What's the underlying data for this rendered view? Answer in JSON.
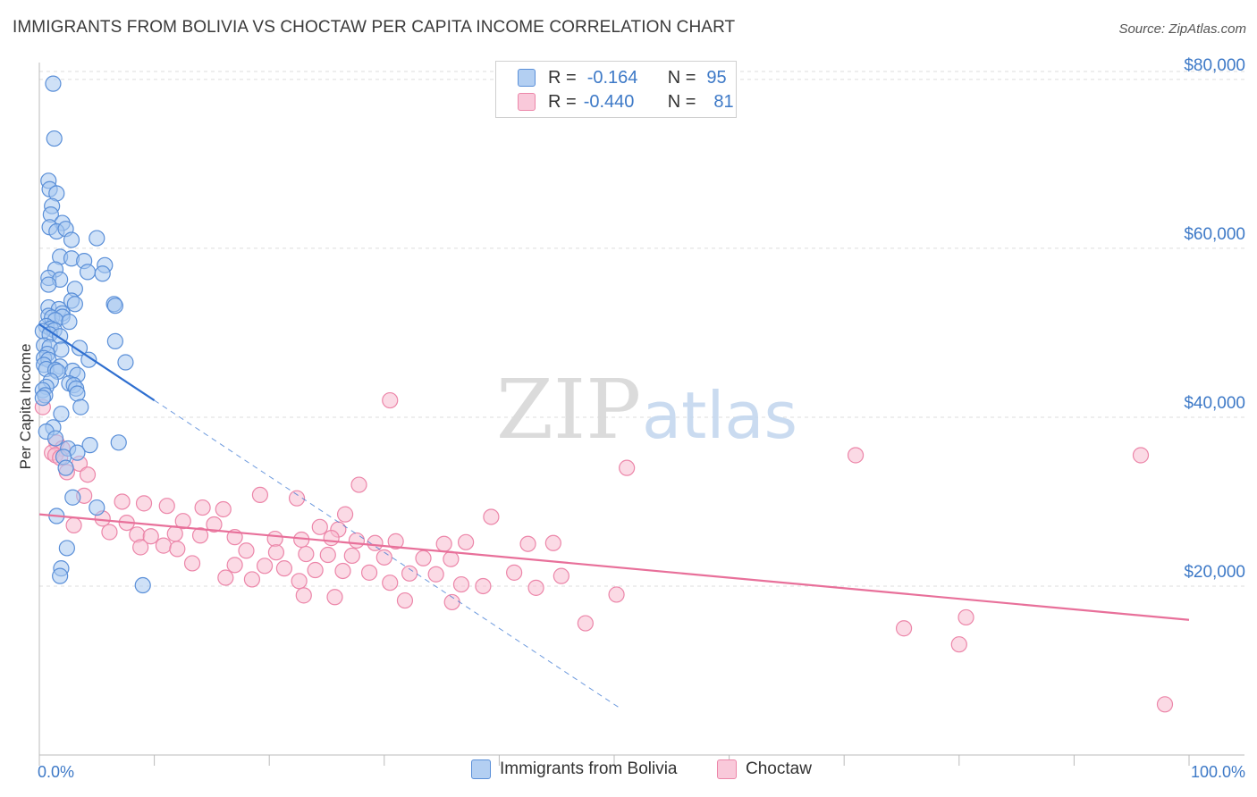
{
  "title": "IMMIGRANTS FROM BOLIVIA VS CHOCTAW PER CAPITA INCOME CORRELATION CHART",
  "source": "Source: ZipAtlas.com",
  "watermark": {
    "zip": "ZIP",
    "atlas": "atlas"
  },
  "legend": {
    "rows": [
      {
        "r_label": "R =",
        "r_value": "-0.164",
        "n_label": "N =",
        "n_value": "95"
      },
      {
        "r_label": "R =",
        "r_value": "-0.440",
        "n_label": "N =",
        "n_value": "81"
      }
    ]
  },
  "colors": {
    "blue_fill": "#a8c8f0",
    "blue_stroke": "#5a8fd8",
    "blue_line": "#2f6fd0",
    "pink_fill": "#f7bcd0",
    "pink_stroke": "#ec86a9",
    "pink_line": "#e8709a",
    "grid": "#dddddd",
    "axis_text": "#3d79c7"
  },
  "chart_data": {
    "type": "scatter",
    "title": "IMMIGRANTS FROM BOLIVIA VS CHOCTAW PER CAPITA INCOME CORRELATION CHART",
    "xlabel": "",
    "ylabel": "Per Capita Income",
    "xlim": [
      0,
      100
    ],
    "ylim": [
      0,
      82000
    ],
    "x_tick_labels": [
      "0.0%",
      "100.0%"
    ],
    "y_ticks": [
      20000,
      40000,
      60000,
      80000
    ],
    "y_tick_labels": [
      "$20,000",
      "$40,000",
      "$60,000",
      "$80,000"
    ],
    "series": [
      {
        "name": "Immigrants from Bolivia",
        "color": "blue",
        "R": -0.164,
        "N": 95,
        "trend": {
          "x0": 0,
          "y0": 51000,
          "x1": 10,
          "y1": 42000,
          "dash_x_end": 50.5
        },
        "points": [
          [
            1.2,
            79500
          ],
          [
            1.3,
            73000
          ],
          [
            0.8,
            68000
          ],
          [
            0.9,
            67000
          ],
          [
            1.5,
            66500
          ],
          [
            1.1,
            65000
          ],
          [
            1.0,
            64000
          ],
          [
            2.0,
            63000
          ],
          [
            0.9,
            62500
          ],
          [
            1.5,
            62000
          ],
          [
            2.3,
            62300
          ],
          [
            2.8,
            61000
          ],
          [
            5.0,
            61200
          ],
          [
            1.8,
            59000
          ],
          [
            2.8,
            58800
          ],
          [
            3.9,
            58500
          ],
          [
            5.7,
            58000
          ],
          [
            1.4,
            57500
          ],
          [
            4.2,
            57200
          ],
          [
            5.5,
            57000
          ],
          [
            0.8,
            56500
          ],
          [
            1.8,
            56300
          ],
          [
            0.8,
            55700
          ],
          [
            3.1,
            55200
          ],
          [
            2.8,
            53800
          ],
          [
            3.1,
            53400
          ],
          [
            6.5,
            53400
          ],
          [
            6.6,
            53200
          ],
          [
            0.8,
            53000
          ],
          [
            1.7,
            52800
          ],
          [
            2.0,
            52300
          ],
          [
            0.8,
            52000
          ],
          [
            1.1,
            51800
          ],
          [
            2.0,
            51900
          ],
          [
            1.4,
            51500
          ],
          [
            2.6,
            51300
          ],
          [
            0.6,
            50800
          ],
          [
            1.0,
            50500
          ],
          [
            1.3,
            50300
          ],
          [
            0.3,
            50200
          ],
          [
            0.9,
            49800
          ],
          [
            1.8,
            49600
          ],
          [
            6.6,
            49000
          ],
          [
            0.4,
            48500
          ],
          [
            0.9,
            48300
          ],
          [
            3.5,
            48200
          ],
          [
            1.9,
            48000
          ],
          [
            0.7,
            47500
          ],
          [
            0.4,
            47000
          ],
          [
            0.8,
            46800
          ],
          [
            4.3,
            46800
          ],
          [
            7.5,
            46500
          ],
          [
            0.4,
            46200
          ],
          [
            1.8,
            46000
          ],
          [
            0.6,
            45700
          ],
          [
            1.4,
            45600
          ],
          [
            2.9,
            45500
          ],
          [
            1.6,
            45400
          ],
          [
            3.3,
            45000
          ],
          [
            1.0,
            44300
          ],
          [
            2.6,
            44000
          ],
          [
            3.0,
            43800
          ],
          [
            0.6,
            43600
          ],
          [
            3.2,
            43400
          ],
          [
            0.3,
            43200
          ],
          [
            3.3,
            42800
          ],
          [
            0.5,
            42600
          ],
          [
            0.3,
            42300
          ],
          [
            3.6,
            41200
          ],
          [
            1.9,
            40400
          ],
          [
            1.2,
            38800
          ],
          [
            0.6,
            38300
          ],
          [
            1.4,
            37500
          ],
          [
            6.9,
            37000
          ],
          [
            4.4,
            36700
          ],
          [
            2.5,
            36300
          ],
          [
            3.3,
            35800
          ],
          [
            2.1,
            35300
          ],
          [
            2.3,
            34000
          ],
          [
            2.9,
            30500
          ],
          [
            5.0,
            29300
          ],
          [
            1.5,
            28300
          ],
          [
            2.4,
            24500
          ],
          [
            1.9,
            22100
          ],
          [
            1.8,
            21200
          ],
          [
            9.0,
            20100
          ]
        ]
      },
      {
        "name": "Choctaw",
        "color": "pink",
        "R": -0.44,
        "N": 81,
        "trend": {
          "x0": 0,
          "y0": 28500,
          "x1": 100,
          "y1": 16000
        },
        "points": [
          [
            0.3,
            41200
          ],
          [
            30.5,
            42000
          ],
          [
            1.5,
            37000
          ],
          [
            2.0,
            36300
          ],
          [
            1.1,
            35800
          ],
          [
            1.4,
            35500
          ],
          [
            1.8,
            35200
          ],
          [
            71.0,
            35500
          ],
          [
            95.8,
            35500
          ],
          [
            3.5,
            34500
          ],
          [
            51.1,
            34000
          ],
          [
            2.4,
            33500
          ],
          [
            4.2,
            33200
          ],
          [
            27.8,
            32000
          ],
          [
            3.9,
            30700
          ],
          [
            19.2,
            30800
          ],
          [
            22.4,
            30400
          ],
          [
            7.2,
            30000
          ],
          [
            9.1,
            29800
          ],
          [
            11.1,
            29500
          ],
          [
            14.2,
            29300
          ],
          [
            16.0,
            29100
          ],
          [
            26.6,
            28500
          ],
          [
            39.3,
            28200
          ],
          [
            5.5,
            28000
          ],
          [
            7.6,
            27500
          ],
          [
            12.5,
            27700
          ],
          [
            15.2,
            27300
          ],
          [
            3.0,
            27200
          ],
          [
            24.4,
            27000
          ],
          [
            26.0,
            26700
          ],
          [
            6.1,
            26400
          ],
          [
            8.5,
            26100
          ],
          [
            9.7,
            25900
          ],
          [
            11.8,
            26200
          ],
          [
            14.0,
            26000
          ],
          [
            17.0,
            25800
          ],
          [
            20.5,
            25600
          ],
          [
            22.8,
            25500
          ],
          [
            25.4,
            25700
          ],
          [
            27.6,
            25400
          ],
          [
            29.2,
            25100
          ],
          [
            31.0,
            25300
          ],
          [
            35.2,
            25000
          ],
          [
            37.1,
            25200
          ],
          [
            42.5,
            25000
          ],
          [
            44.7,
            25100
          ],
          [
            8.8,
            24600
          ],
          [
            10.8,
            24800
          ],
          [
            12.0,
            24400
          ],
          [
            18.0,
            24200
          ],
          [
            20.6,
            24000
          ],
          [
            23.2,
            23800
          ],
          [
            25.1,
            23700
          ],
          [
            27.2,
            23600
          ],
          [
            30.0,
            23400
          ],
          [
            33.4,
            23300
          ],
          [
            35.8,
            23200
          ],
          [
            13.3,
            22700
          ],
          [
            17.0,
            22500
          ],
          [
            19.6,
            22400
          ],
          [
            21.3,
            22100
          ],
          [
            24.0,
            21900
          ],
          [
            26.4,
            21800
          ],
          [
            28.7,
            21600
          ],
          [
            32.2,
            21500
          ],
          [
            34.5,
            21400
          ],
          [
            41.3,
            21600
          ],
          [
            45.4,
            21200
          ],
          [
            16.2,
            21000
          ],
          [
            18.5,
            20800
          ],
          [
            22.6,
            20600
          ],
          [
            30.5,
            20400
          ],
          [
            36.7,
            20200
          ],
          [
            38.6,
            20000
          ],
          [
            43.2,
            19800
          ],
          [
            50.2,
            19000
          ],
          [
            23.0,
            18900
          ],
          [
            25.7,
            18700
          ],
          [
            31.8,
            18300
          ],
          [
            35.9,
            18100
          ],
          [
            47.5,
            15600
          ],
          [
            75.2,
            15000
          ],
          [
            80.0,
            13100
          ],
          [
            80.6,
            16300
          ],
          [
            97.9,
            6000
          ]
        ]
      }
    ]
  },
  "bottom_legend": [
    {
      "label": "Immigrants from Bolivia"
    },
    {
      "label": "Choctaw"
    }
  ]
}
